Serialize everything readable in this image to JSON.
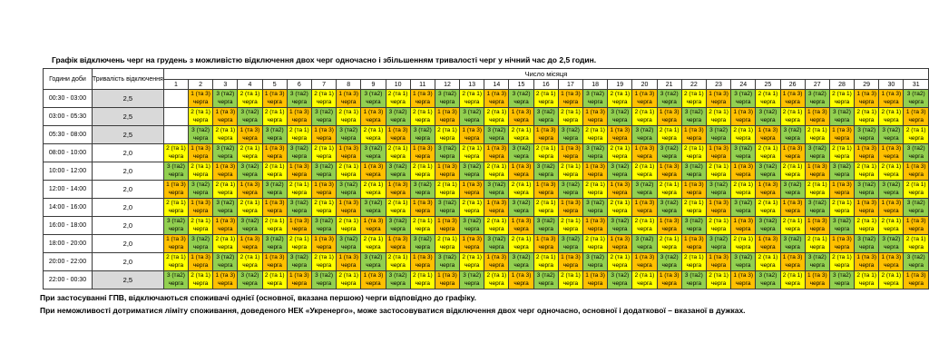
{
  "title": "Графік відключень черг на грудень з можливістю відключення двох черг одночасно і збільшенням тривалості черг у нічний час до 2,5 годин.",
  "table": {
    "corner_header": "Години доби",
    "duration_header": "Тривалість відключення",
    "days_group_header": "Число місяця",
    "days": [
      "1",
      "2",
      "3",
      "4",
      "5",
      "6",
      "7",
      "8",
      "9",
      "10",
      "11",
      "12",
      "13",
      "14",
      "15",
      "16",
      "17",
      "18",
      "19",
      "20",
      "21",
      "22",
      "23",
      "24",
      "25",
      "26",
      "27",
      "28",
      "29",
      "30",
      "31"
    ],
    "cell_word": "черга",
    "queues": {
      "1": {
        "label": "1 (та 3)",
        "color": "#FFC000"
      },
      "2": {
        "label": "2 (та 1)",
        "color": "#FFFF00"
      },
      "3": {
        "label": "3 (та2)",
        "color": "#92D050"
      }
    },
    "night_duration_bg": "#D9D9D9",
    "rows": [
      {
        "time": "00:30 - 03:00",
        "duration": "2,5",
        "night": true,
        "queues": [
          0,
          1,
          3,
          2,
          1,
          3,
          2,
          1,
          3,
          2,
          1,
          3,
          2,
          1,
          3,
          2,
          1,
          3,
          2,
          1,
          3,
          2,
          1,
          3,
          2,
          1,
          3,
          2,
          1,
          1,
          3
        ]
      },
      {
        "time": "03:00 - 05:30",
        "duration": "2,5",
        "night": true,
        "queues": [
          0,
          2,
          1,
          3,
          2,
          1,
          3,
          2,
          1,
          3,
          2,
          1,
          3,
          2,
          1,
          3,
          2,
          1,
          3,
          2,
          1,
          3,
          2,
          1,
          3,
          2,
          1,
          3,
          2,
          2,
          1
        ]
      },
      {
        "time": "05:30 - 08:00",
        "duration": "2,5",
        "night": true,
        "queues": [
          0,
          3,
          2,
          1,
          3,
          2,
          1,
          3,
          2,
          1,
          3,
          2,
          1,
          3,
          2,
          1,
          3,
          2,
          1,
          3,
          2,
          1,
          3,
          2,
          1,
          3,
          2,
          1,
          3,
          3,
          2
        ]
      },
      {
        "time": "08:00 - 10:00",
        "duration": "2,0",
        "night": false,
        "queues": [
          2,
          1,
          3,
          2,
          1,
          3,
          2,
          1,
          3,
          2,
          1,
          3,
          2,
          1,
          3,
          2,
          1,
          3,
          2,
          1,
          3,
          2,
          1,
          3,
          2,
          1,
          3,
          2,
          1,
          1,
          3
        ]
      },
      {
        "time": "10:00 - 12:00",
        "duration": "2,0",
        "night": false,
        "queues": [
          3,
          2,
          1,
          3,
          2,
          1,
          3,
          2,
          1,
          3,
          2,
          1,
          3,
          2,
          1,
          3,
          2,
          1,
          3,
          2,
          1,
          3,
          2,
          1,
          3,
          2,
          1,
          3,
          2,
          2,
          1
        ]
      },
      {
        "time": "12:00 - 14:00",
        "duration": "2,0",
        "night": false,
        "queues": [
          1,
          3,
          2,
          1,
          3,
          2,
          1,
          3,
          2,
          1,
          3,
          2,
          1,
          3,
          2,
          1,
          3,
          2,
          1,
          3,
          2,
          1,
          3,
          2,
          1,
          3,
          2,
          1,
          3,
          3,
          2
        ]
      },
      {
        "time": "14:00 - 16:00",
        "duration": "2,0",
        "night": false,
        "queues": [
          2,
          1,
          3,
          2,
          1,
          3,
          2,
          1,
          3,
          2,
          1,
          3,
          2,
          1,
          3,
          2,
          1,
          3,
          2,
          1,
          3,
          2,
          1,
          3,
          2,
          1,
          3,
          2,
          1,
          1,
          3
        ]
      },
      {
        "time": "16:00 - 18:00",
        "duration": "2,0",
        "night": false,
        "queues": [
          3,
          2,
          1,
          3,
          2,
          1,
          3,
          2,
          1,
          3,
          2,
          1,
          3,
          2,
          1,
          3,
          2,
          1,
          3,
          2,
          1,
          3,
          2,
          1,
          3,
          2,
          1,
          3,
          2,
          2,
          1
        ]
      },
      {
        "time": "18:00 - 20:00",
        "duration": "2,0",
        "night": false,
        "queues": [
          1,
          3,
          2,
          1,
          3,
          2,
          1,
          3,
          2,
          1,
          3,
          2,
          1,
          3,
          2,
          1,
          3,
          2,
          1,
          3,
          2,
          1,
          3,
          2,
          1,
          3,
          2,
          1,
          3,
          3,
          2
        ]
      },
      {
        "time": "20:00 - 22:00",
        "duration": "2,0",
        "night": false,
        "queues": [
          2,
          1,
          3,
          2,
          1,
          3,
          2,
          1,
          3,
          2,
          1,
          3,
          2,
          1,
          3,
          2,
          1,
          3,
          2,
          1,
          3,
          2,
          1,
          3,
          2,
          1,
          3,
          2,
          1,
          1,
          3
        ]
      },
      {
        "time": "22:00 - 00:30",
        "duration": "2,5",
        "night": true,
        "queues": [
          3,
          2,
          1,
          3,
          2,
          1,
          3,
          2,
          1,
          3,
          2,
          1,
          3,
          2,
          1,
          3,
          2,
          1,
          3,
          2,
          1,
          3,
          2,
          1,
          3,
          2,
          1,
          3,
          2,
          2,
          1
        ]
      }
    ]
  },
  "notes": [
    "При застосуванні ГПВ, відключаються споживачі однієї (основної, вказана першою) черги відповідно до графіку.",
    "При неможливості дотриматися ліміту споживання, доведеного НЕК «Укренерго», може застосовуватися відключення двох черг одночасно, основної і додаткової – вказаної в дужках."
  ]
}
